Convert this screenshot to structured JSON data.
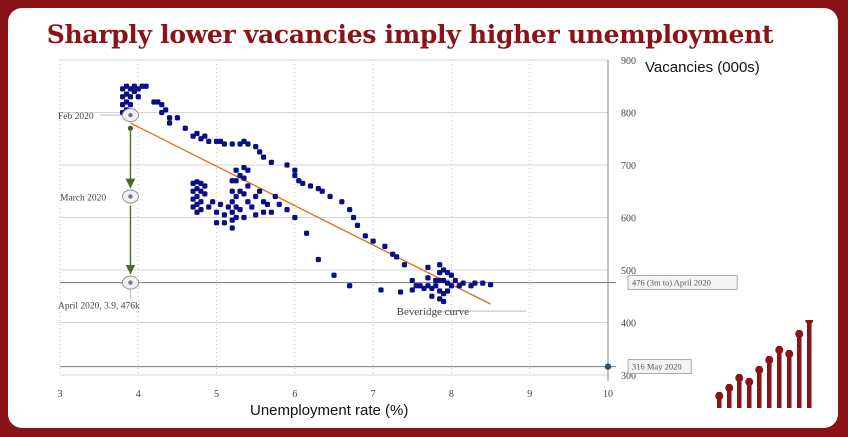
{
  "title": "Sharply lower vacancies imply higher unemployment",
  "chart_data": {
    "type": "scatter",
    "title": "Sharply lower vacancies imply higher unemployment",
    "xlabel": "Unemployment rate (%)",
    "ylabel": "Vacancies (000s)",
    "xlim": [
      3,
      10
    ],
    "ylim": [
      300,
      900
    ],
    "xticks": [
      "3",
      "4",
      "5",
      "6",
      "7",
      "8",
      "9",
      "10"
    ],
    "yticks": [
      "300",
      "400",
      "500",
      "600",
      "700",
      "800",
      "900"
    ],
    "grid": true,
    "points": [
      [
        3.8,
        845
      ],
      [
        3.8,
        830
      ],
      [
        3.8,
        815
      ],
      [
        3.8,
        800
      ],
      [
        3.85,
        850
      ],
      [
        3.85,
        835
      ],
      [
        3.85,
        820
      ],
      [
        3.85,
        805
      ],
      [
        3.9,
        845
      ],
      [
        3.9,
        830
      ],
      [
        3.9,
        815
      ],
      [
        3.95,
        850
      ],
      [
        3.95,
        840
      ],
      [
        4.0,
        845
      ],
      [
        4.0,
        830
      ],
      [
        4.05,
        850
      ],
      [
        4.1,
        850
      ],
      [
        4.2,
        820
      ],
      [
        4.25,
        820
      ],
      [
        4.3,
        815
      ],
      [
        4.3,
        800
      ],
      [
        4.35,
        805
      ],
      [
        4.4,
        790
      ],
      [
        4.4,
        780
      ],
      [
        4.5,
        790
      ],
      [
        4.6,
        770
      ],
      [
        4.7,
        755
      ],
      [
        4.75,
        760
      ],
      [
        4.8,
        750
      ],
      [
        4.85,
        755
      ],
      [
        4.9,
        745
      ],
      [
        5.0,
        745
      ],
      [
        5.05,
        745
      ],
      [
        5.1,
        740
      ],
      [
        5.2,
        740
      ],
      [
        5.3,
        740
      ],
      [
        5.35,
        745
      ],
      [
        5.4,
        740
      ],
      [
        5.5,
        735
      ],
      [
        5.55,
        725
      ],
      [
        5.6,
        715
      ],
      [
        5.7,
        705
      ],
      [
        5.9,
        700
      ],
      [
        6.0,
        690
      ],
      [
        6.0,
        680
      ],
      [
        6.05,
        670
      ],
      [
        6.1,
        665
      ],
      [
        6.2,
        660
      ],
      [
        6.3,
        655
      ],
      [
        6.35,
        650
      ],
      [
        6.45,
        640
      ],
      [
        6.6,
        630
      ],
      [
        6.7,
        615
      ],
      [
        6.75,
        600
      ],
      [
        6.8,
        585
      ],
      [
        6.9,
        565
      ],
      [
        7.0,
        555
      ],
      [
        7.15,
        545
      ],
      [
        7.25,
        530
      ],
      [
        7.3,
        525
      ],
      [
        7.4,
        510
      ],
      [
        7.5,
        480
      ],
      [
        7.55,
        470
      ],
      [
        7.6,
        470
      ],
      [
        7.65,
        465
      ],
      [
        7.7,
        470
      ],
      [
        7.75,
        465
      ],
      [
        7.8,
        480
      ],
      [
        4.7,
        665
      ],
      [
        4.7,
        650
      ],
      [
        4.7,
        635
      ],
      [
        4.7,
        620
      ],
      [
        4.75,
        668
      ],
      [
        4.75,
        655
      ],
      [
        4.75,
        640
      ],
      [
        4.75,
        625
      ],
      [
        4.75,
        610
      ],
      [
        4.8,
        665
      ],
      [
        4.8,
        650
      ],
      [
        4.8,
        630
      ],
      [
        4.8,
        615
      ],
      [
        4.85,
        660
      ],
      [
        4.85,
        645
      ],
      [
        4.9,
        620
      ],
      [
        4.95,
        630
      ],
      [
        5.0,
        610
      ],
      [
        5.0,
        590
      ],
      [
        5.05,
        625
      ],
      [
        5.1,
        605
      ],
      [
        5.1,
        590
      ],
      [
        5.15,
        620
      ],
      [
        5.2,
        670
      ],
      [
        5.2,
        650
      ],
      [
        5.2,
        630
      ],
      [
        5.2,
        610
      ],
      [
        5.2,
        595
      ],
      [
        5.2,
        580
      ],
      [
        5.25,
        690
      ],
      [
        5.25,
        670
      ],
      [
        5.25,
        640
      ],
      [
        5.25,
        620
      ],
      [
        5.25,
        600
      ],
      [
        5.3,
        680
      ],
      [
        5.3,
        650
      ],
      [
        5.3,
        615
      ],
      [
        5.35,
        695
      ],
      [
        5.35,
        675
      ],
      [
        5.35,
        645
      ],
      [
        5.35,
        600
      ],
      [
        5.4,
        690
      ],
      [
        5.4,
        660
      ],
      [
        5.4,
        630
      ],
      [
        5.45,
        620
      ],
      [
        5.5,
        640
      ],
      [
        5.5,
        605
      ],
      [
        5.55,
        650
      ],
      [
        5.6,
        630
      ],
      [
        5.6,
        610
      ],
      [
        5.65,
        625
      ],
      [
        5.7,
        610
      ],
      [
        5.75,
        640
      ],
      [
        5.8,
        625
      ],
      [
        5.9,
        615
      ],
      [
        6.0,
        600
      ],
      [
        6.15,
        570
      ],
      [
        6.3,
        520
      ],
      [
        6.5,
        490
      ],
      [
        6.7,
        470
      ],
      [
        7.1,
        462
      ],
      [
        7.35,
        458
      ],
      [
        7.5,
        462
      ],
      [
        7.7,
        505
      ],
      [
        7.7,
        485
      ],
      [
        7.75,
        450
      ],
      [
        7.8,
        470
      ],
      [
        7.85,
        510
      ],
      [
        7.85,
        495
      ],
      [
        7.85,
        480
      ],
      [
        7.85,
        460
      ],
      [
        7.85,
        445
      ],
      [
        7.9,
        500
      ],
      [
        7.9,
        480
      ],
      [
        7.9,
        455
      ],
      [
        7.9,
        440
      ],
      [
        7.95,
        495
      ],
      [
        7.95,
        475
      ],
      [
        7.95,
        460
      ],
      [
        8.0,
        490
      ],
      [
        8.0,
        470
      ],
      [
        8.05,
        480
      ],
      [
        8.1,
        470
      ],
      [
        8.15,
        475
      ],
      [
        8.25,
        470
      ],
      [
        8.3,
        475
      ],
      [
        8.4,
        475
      ],
      [
        8.5,
        472
      ]
    ],
    "trendline": {
      "name": "Beveridge curve",
      "x": [
        3.9,
        8.5
      ],
      "y": [
        780,
        435
      ]
    },
    "reference_lines": [
      {
        "name": "476 (3m to) April 2020",
        "y": 476
      },
      {
        "name": "316 May 2020",
        "y": 316
      }
    ],
    "annotations": [
      {
        "text": "Feb 2020",
        "x": 3.9,
        "y": 795
      },
      {
        "text": "March 2020",
        "x": 3.9,
        "y": 640
      },
      {
        "text": "April 2020, 3.9, 476k",
        "x": 3.9,
        "y": 476
      }
    ],
    "colors": {
      "points": "#0a0f87",
      "trendline": "#e07018",
      "arrows": "#4f6b23",
      "title": "#8b1216",
      "background": "#8b1216"
    }
  }
}
